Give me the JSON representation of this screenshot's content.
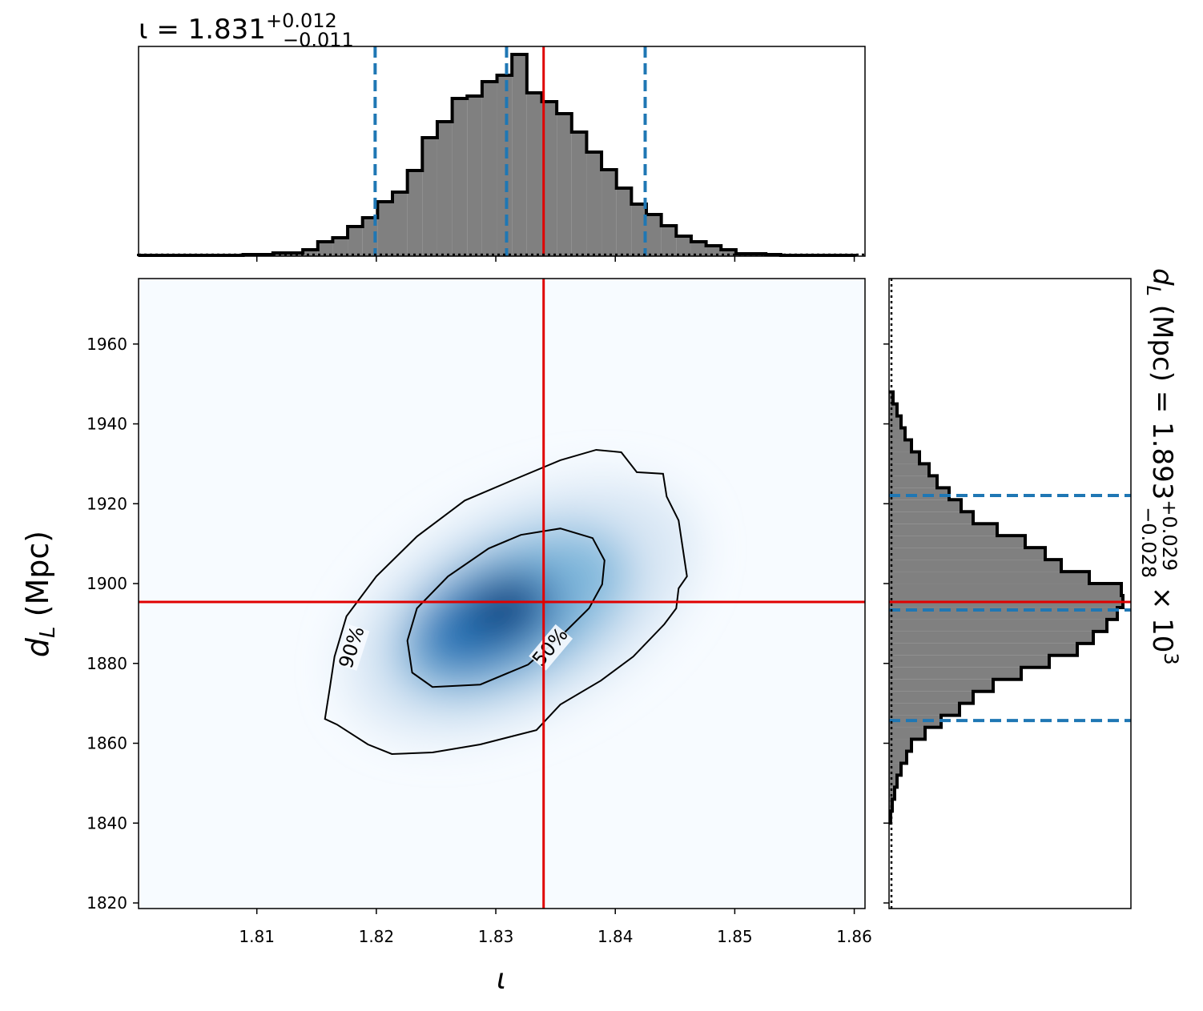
{
  "chart_data": {
    "type": "corner",
    "x_label": "ι",
    "y_label": {
      "main": "d",
      "sub": "L",
      "rest": " (Mpc)"
    },
    "x_title": {
      "main": "ι = 1.831",
      "plus": "+0.012",
      "minus": "−0.011"
    },
    "y_title": {
      "main": "d",
      "sub": "L",
      "rest": " (Mpc) = 1.893",
      "plus": "+0.029",
      "minus": "−0.028",
      "times": " × 10",
      "exp": "3"
    },
    "xlim": [
      1.8001,
      1.8609
    ],
    "ylim": [
      1818.6,
      1976.4
    ],
    "xticks": [
      1.81,
      1.82,
      1.83,
      1.84,
      1.85,
      1.86
    ],
    "yticks": [
      1820,
      1840,
      1860,
      1880,
      1900,
      1920,
      1940,
      1960
    ],
    "truth": {
      "x": 1.834,
      "y": 1895.4,
      "color": "#e00000"
    },
    "quantile_color": "#1f77b4",
    "hist_color": "#808080",
    "x_hist": {
      "bins": [
        1.8001,
        1.80135,
        1.8026,
        1.80385,
        1.8051,
        1.80635,
        1.8076,
        1.80885,
        1.8101,
        1.81135,
        1.8126,
        1.81385,
        1.8151,
        1.81635,
        1.8176,
        1.81885,
        1.8201,
        1.82135,
        1.8226,
        1.82385,
        1.8251,
        1.82635,
        1.8276,
        1.82885,
        1.8301,
        1.83135,
        1.8326,
        1.83385,
        1.8351,
        1.83635,
        1.8376,
        1.83885,
        1.8401,
        1.84135,
        1.8426,
        1.84385,
        1.8451,
        1.84635,
        1.8476,
        1.84885,
        1.8501,
        1.85135,
        1.8526,
        1.85385,
        1.8551,
        1.85635,
        1.8576,
        1.85885,
        1.8601
      ],
      "counts": [
        1,
        1,
        1,
        1,
        1,
        1,
        1,
        2,
        2,
        4,
        4,
        8,
        18,
        23,
        37,
        48,
        68,
        80,
        107,
        148,
        168,
        197,
        200,
        218,
        226,
        252,
        204,
        193,
        178,
        155,
        130,
        108,
        85,
        65,
        52,
        38,
        25,
        18,
        13,
        8,
        3,
        3,
        2,
        1,
        1,
        1,
        1,
        1
      ],
      "ylim": [
        0,
        262
      ],
      "quantiles": [
        1.8199,
        1.8309,
        1.8425
      ]
    },
    "y_hist": {
      "bins": [
        1840,
        1843,
        1846,
        1849,
        1852,
        1855,
        1858,
        1861,
        1864,
        1867,
        1870,
        1873,
        1876,
        1879,
        1882,
        1885,
        1888,
        1891,
        1894,
        1897,
        1900,
        1903,
        1906,
        1909,
        1912,
        1915,
        1918,
        1921,
        1924,
        1927,
        1930,
        1933,
        1936,
        1939,
        1942,
        1945,
        1948
      ],
      "counts": [
        2,
        4,
        7,
        10,
        15,
        22,
        28,
        45,
        65,
        88,
        105,
        130,
        165,
        200,
        235,
        255,
        272,
        285,
        292,
        290,
        250,
        215,
        195,
        170,
        135,
        105,
        90,
        75,
        60,
        50,
        38,
        28,
        20,
        15,
        10,
        5
      ],
      "xlim": [
        0,
        302
      ],
      "quantiles": [
        1865.7,
        1893.4,
        1922.05
      ]
    },
    "contours": [
      {
        "name": "90%",
        "x": [
          1.8157,
          1.8161,
          1.8165,
          1.8175,
          1.82,
          1.8234,
          1.8274,
          1.8314,
          1.8354,
          1.8384,
          1.8405,
          1.8418,
          1.844,
          1.8443,
          1.8453,
          1.846,
          1.8453,
          1.8451,
          1.8441,
          1.8415,
          1.8388,
          1.8354,
          1.8334,
          1.8287,
          1.8247,
          1.8213,
          1.8193,
          1.8167
        ],
        "y": [
          1866.1,
          1873.7,
          1881.7,
          1891.8,
          1901.8,
          1911.8,
          1920.8,
          1925.9,
          1930.9,
          1933.5,
          1932.9,
          1927.9,
          1927.5,
          1921.8,
          1915.8,
          1901.8,
          1898.8,
          1893.8,
          1889.8,
          1881.7,
          1875.7,
          1869.7,
          1863.3,
          1859.7,
          1857.7,
          1857.3,
          1859.7,
          1864.7
        ],
        "label_at": [
          1.818,
          1884
        ]
      },
      {
        "name": "50%",
        "x": [
          1.8226,
          1.8234,
          1.826,
          1.8294,
          1.8321,
          1.8354,
          1.8381,
          1.8391,
          1.8389,
          1.8378,
          1.8354,
          1.8327,
          1.8287,
          1.8247,
          1.823
        ],
        "y": [
          1885.7,
          1893.8,
          1901.8,
          1908.8,
          1912.2,
          1913.8,
          1911.4,
          1905.8,
          1899.8,
          1893.8,
          1886.7,
          1879.7,
          1874.7,
          1874.1,
          1877.7
        ],
        "label_at": [
          1.8346,
          1884
        ]
      }
    ]
  }
}
